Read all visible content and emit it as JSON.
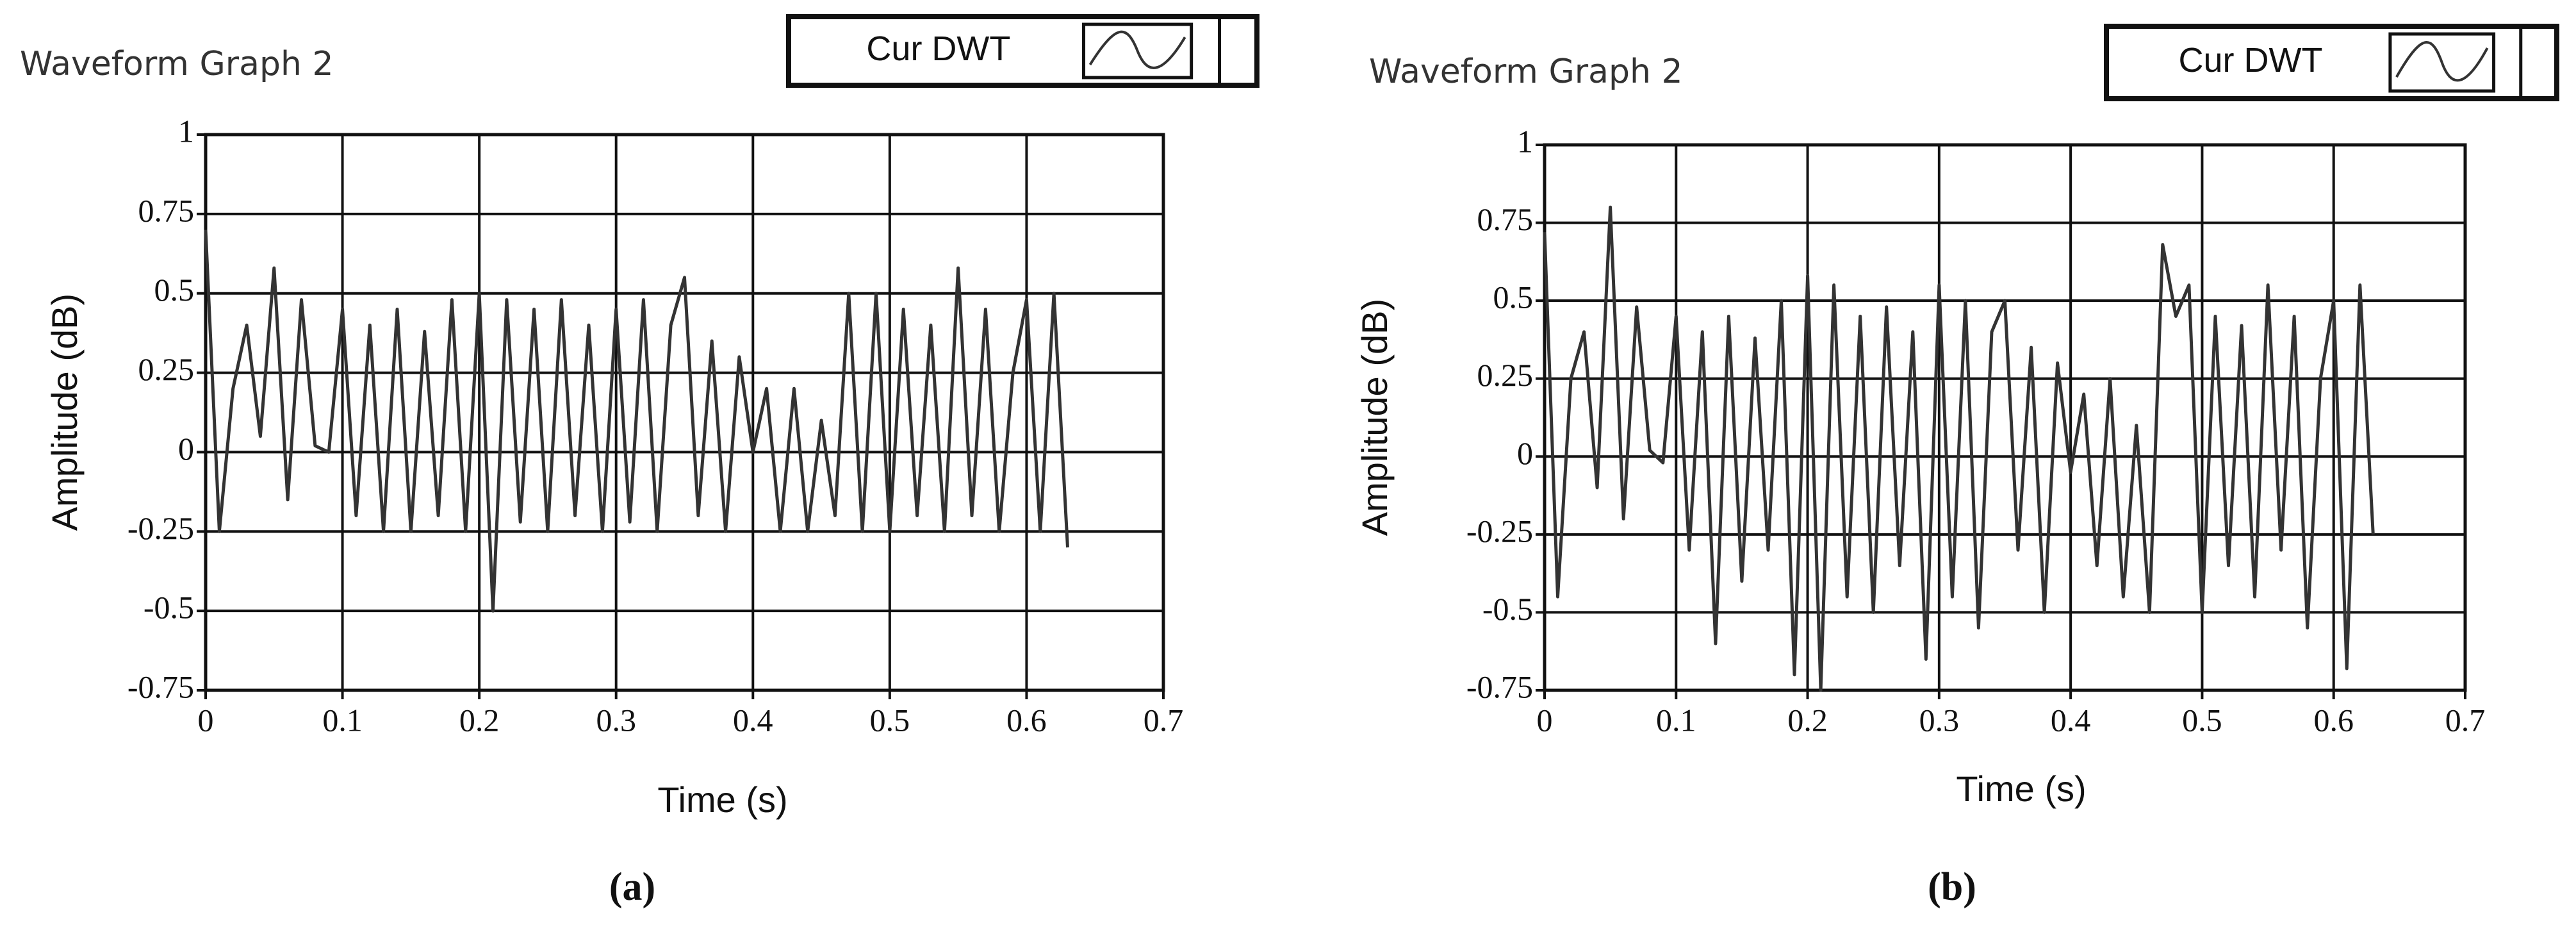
{
  "chart_data": [
    {
      "type": "line",
      "title": "Waveform Graph 2",
      "caption": "(a)",
      "x_label": "Time (s)",
      "y_label": "Amplitude (dB)",
      "x": [
        0,
        0.01,
        0.02,
        0.03,
        0.04,
        0.05,
        0.06,
        0.07,
        0.08,
        0.09,
        0.1,
        0.11,
        0.12,
        0.13,
        0.14,
        0.15,
        0.16,
        0.17,
        0.18,
        0.19,
        0.2,
        0.21,
        0.22,
        0.23,
        0.24,
        0.25,
        0.26,
        0.27,
        0.28,
        0.29,
        0.3,
        0.31,
        0.32,
        0.33,
        0.34,
        0.35,
        0.36,
        0.37,
        0.38,
        0.39,
        0.4,
        0.41,
        0.42,
        0.43,
        0.44,
        0.45,
        0.46,
        0.47,
        0.48,
        0.49,
        0.5,
        0.51,
        0.52,
        0.53,
        0.54,
        0.55,
        0.56,
        0.57,
        0.58,
        0.59,
        0.6,
        0.61,
        0.62,
        0.63
      ],
      "series": [
        {
          "name": "Cur DWT",
          "color": "#333333",
          "values": [
            0.7,
            -0.25,
            0.2,
            0.4,
            0.05,
            0.58,
            -0.15,
            0.48,
            0.02,
            0,
            0.45,
            -0.2,
            0.4,
            -0.25,
            0.45,
            -0.25,
            0.38,
            -0.2,
            0.48,
            -0.25,
            0.5,
            -0.5,
            0.48,
            -0.22,
            0.45,
            -0.25,
            0.48,
            -0.2,
            0.4,
            -0.25,
            0.45,
            -0.22,
            0.48,
            -0.25,
            0.4,
            0.55,
            -0.2,
            0.35,
            -0.25,
            0.3,
            0,
            0.2,
            -0.25,
            0.2,
            -0.25,
            0.1,
            -0.2,
            0.5,
            -0.25,
            0.5,
            -0.25,
            0.45,
            -0.2,
            0.4,
            -0.25,
            0.58,
            -0.2,
            0.45,
            -0.25,
            0.25,
            0.48,
            -0.25,
            0.5,
            -0.3
          ]
        }
      ],
      "xlim": [
        0,
        0.7
      ],
      "xticks": [
        0,
        0.1,
        0.2,
        0.3,
        0.4,
        0.5,
        0.6,
        0.7
      ],
      "ylim": [
        -0.75,
        1
      ],
      "yticks": [
        -0.75,
        -0.5,
        -0.25,
        0,
        0.25,
        0.5,
        0.75,
        1
      ],
      "grid": true
    },
    {
      "type": "line",
      "title": "Waveform Graph 2",
      "caption": "(b)",
      "x_label": "Time (s)",
      "y_label": "Amplitude (dB)",
      "x": [
        0,
        0.01,
        0.02,
        0.03,
        0.04,
        0.05,
        0.06,
        0.07,
        0.08,
        0.09,
        0.1,
        0.11,
        0.12,
        0.13,
        0.14,
        0.15,
        0.16,
        0.17,
        0.18,
        0.19,
        0.2,
        0.21,
        0.22,
        0.23,
        0.24,
        0.25,
        0.26,
        0.27,
        0.28,
        0.29,
        0.3,
        0.31,
        0.32,
        0.33,
        0.34,
        0.35,
        0.36,
        0.37,
        0.38,
        0.39,
        0.4,
        0.41,
        0.42,
        0.43,
        0.44,
        0.45,
        0.46,
        0.47,
        0.48,
        0.49,
        0.5,
        0.51,
        0.52,
        0.53,
        0.54,
        0.55,
        0.56,
        0.57,
        0.58,
        0.59,
        0.6,
        0.61,
        0.62,
        0.63
      ],
      "series": [
        {
          "name": "Cur DWT",
          "color": "#333333",
          "values": [
            0.72,
            -0.45,
            0.25,
            0.4,
            -0.1,
            0.8,
            -0.2,
            0.48,
            0.02,
            -0.02,
            0.45,
            -0.3,
            0.4,
            -0.6,
            0.45,
            -0.4,
            0.38,
            -0.3,
            0.5,
            -0.7,
            0.58,
            -0.75,
            0.55,
            -0.45,
            0.45,
            -0.5,
            0.48,
            -0.35,
            0.4,
            -0.65,
            0.55,
            -0.45,
            0.5,
            -0.55,
            0.4,
            0.5,
            -0.3,
            0.35,
            -0.5,
            0.3,
            -0.05,
            0.2,
            -0.35,
            0.25,
            -0.45,
            0.1,
            -0.5,
            0.68,
            0.45,
            0.55,
            -0.5,
            0.45,
            -0.35,
            0.42,
            -0.45,
            0.55,
            -0.3,
            0.45,
            -0.55,
            0.25,
            0.5,
            -0.68,
            0.55,
            -0.25
          ]
        }
      ],
      "xlim": [
        0,
        0.7
      ],
      "xticks": [
        0,
        0.1,
        0.2,
        0.3,
        0.4,
        0.5,
        0.6,
        0.7
      ],
      "ylim": [
        -0.75,
        1
      ],
      "yticks": [
        -0.75,
        -0.5,
        -0.25,
        0,
        0.25,
        0.5,
        0.75,
        1
      ],
      "grid": true
    }
  ]
}
